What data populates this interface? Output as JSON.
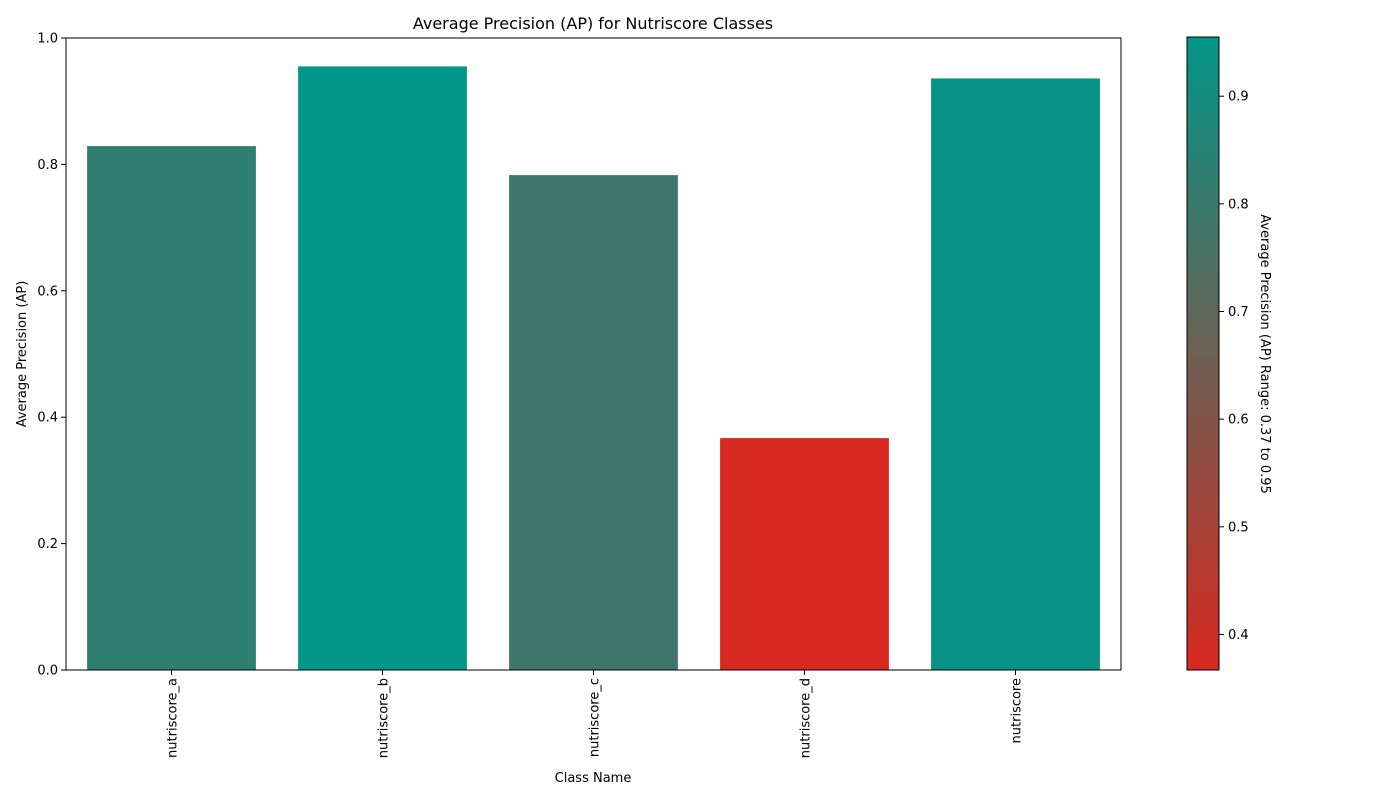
{
  "chart_data": {
    "type": "bar",
    "title": "Average Precision (AP) for Nutriscore Classes",
    "xlabel": "Class Name",
    "ylabel": "Average Precision (AP)",
    "categories": [
      "nutriscore_a",
      "nutriscore_b",
      "nutriscore_c",
      "nutriscore_d",
      "nutriscore"
    ],
    "values": [
      0.829,
      0.955,
      0.783,
      0.367,
      0.936
    ],
    "ylim": [
      0,
      1.0
    ],
    "yticks": [
      "0.0",
      "0.2",
      "0.4",
      "0.6",
      "0.8",
      "1.0"
    ],
    "grid": false,
    "colormap": {
      "low_color": "#d7291f",
      "high_color": "#009688",
      "vmin": 0.367,
      "vmax": 0.955,
      "ticks": [
        "0.4",
        "0.5",
        "0.6",
        "0.7",
        "0.8",
        "0.9"
      ],
      "label": "Average Precision (AP) Range: 0.37 to 0.95"
    }
  }
}
